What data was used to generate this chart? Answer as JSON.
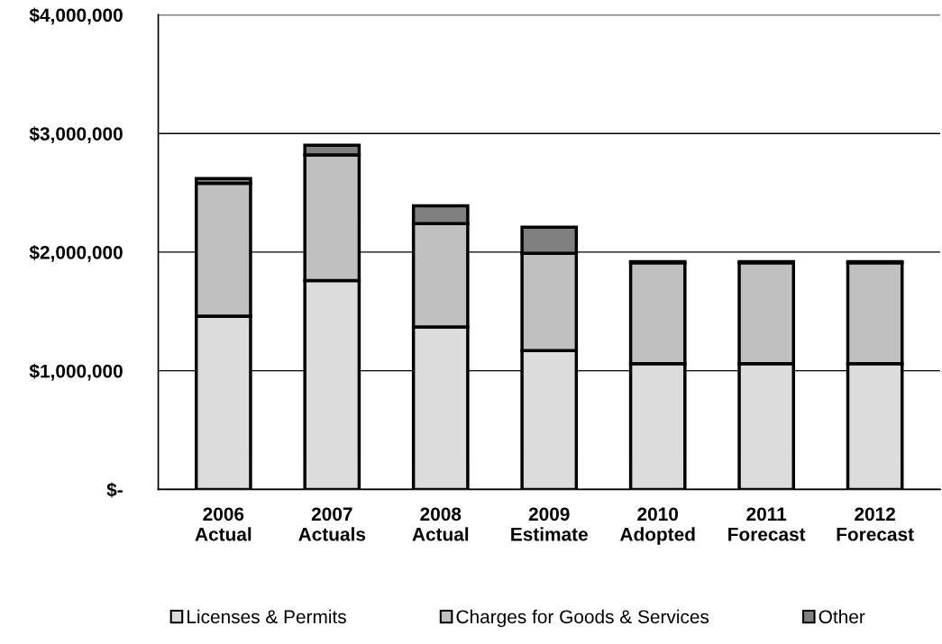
{
  "chart_data": {
    "type": "bar",
    "stacked": true,
    "categories": [
      "2006\nActual",
      "2007\nActuals",
      "2008\nActual",
      "2009\nEstimate",
      "2010\nAdopted",
      "2011\nForecast",
      "2012\nForecast"
    ],
    "series": [
      {
        "name": "Licenses & Permits",
        "color": "#dcdcdc",
        "values": [
          1460000,
          1760000,
          1370000,
          1170000,
          1060000,
          1060000,
          1060000
        ]
      },
      {
        "name": "Charges for Goods & Services",
        "color": "#c0c0c0",
        "values": [
          1120000,
          1060000,
          870000,
          820000,
          850000,
          850000,
          850000
        ]
      },
      {
        "name": "Other",
        "color": "#808080",
        "values": [
          40000,
          80000,
          150000,
          220000,
          10000,
          10000,
          10000
        ]
      }
    ],
    "ylim": [
      0,
      4000000
    ],
    "yticks": [
      {
        "value": 0,
        "label": "$-"
      },
      {
        "value": 1000000,
        "label": "$1,000,000"
      },
      {
        "value": 2000000,
        "label": "$2,000,000"
      },
      {
        "value": 3000000,
        "label": "$3,000,000"
      },
      {
        "value": 4000000,
        "label": "$4,000,000"
      }
    ],
    "grid": "y",
    "legend": "bottom"
  }
}
